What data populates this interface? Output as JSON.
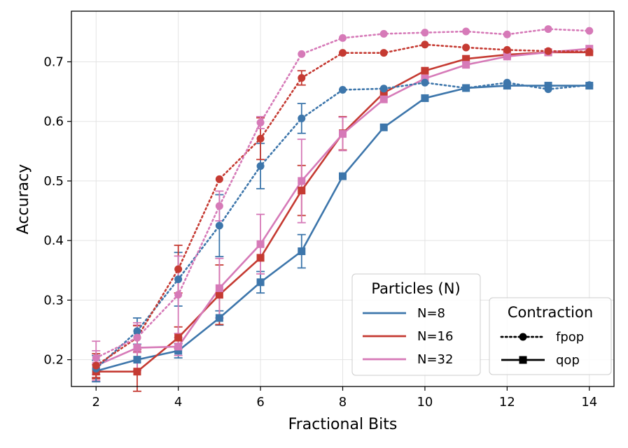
{
  "chart_data": {
    "type": "line",
    "xlabel": "Fractional Bits",
    "ylabel": "Accuracy",
    "xlim": [
      1.4,
      14.6
    ],
    "ylim": [
      0.155,
      0.785
    ],
    "xticks": [
      2,
      4,
      6,
      8,
      10,
      12,
      14
    ],
    "xtick_labels": [
      "2",
      "4",
      "6",
      "8",
      "10",
      "12",
      "14"
    ],
    "yticks": [
      0.2,
      0.3,
      0.4,
      0.5,
      0.6,
      0.7
    ],
    "ytick_labels": [
      "0.2",
      "0.3",
      "0.4",
      "0.5",
      "0.6",
      "0.7"
    ],
    "grid": true,
    "x": [
      2,
      3,
      4,
      5,
      6,
      7,
      8,
      9,
      10,
      11,
      12,
      13,
      14
    ],
    "particles_legend": {
      "title": "Particles (N)",
      "placement": "lower-center",
      "entries": [
        {
          "label": "N=8",
          "color": "#3d76ab"
        },
        {
          "label": "N=16",
          "color": "#c53a32"
        },
        {
          "label": "N=32",
          "color": "#d67ab8"
        }
      ]
    },
    "contraction_legend": {
      "title": "Contraction",
      "placement": "lower-right",
      "entries": [
        {
          "label": "fpop",
          "style": "dotted",
          "marker": "circle"
        },
        {
          "label": "qop",
          "style": "solid",
          "marker": "square"
        }
      ]
    },
    "series": [
      {
        "name": "N=8 qop",
        "color": "#3d76ab",
        "style": "solid",
        "marker": "square",
        "values": [
          0.181,
          0.2,
          0.215,
          0.27,
          0.33,
          0.382,
          0.508,
          0.59,
          0.639,
          0.656,
          0.66,
          0.66,
          0.66
        ],
        "errors": [
          0.018,
          0.0,
          0.012,
          0.012,
          0.018,
          0.028,
          0.0,
          0.0,
          0.0,
          0.0,
          0.0,
          0.0,
          0.0
        ]
      },
      {
        "name": "N=16 qop",
        "color": "#c53a32",
        "style": "solid",
        "marker": "square",
        "values": [
          0.18,
          0.18,
          0.237,
          0.309,
          0.371,
          0.484,
          0.58,
          0.648,
          0.685,
          0.705,
          0.712,
          0.716,
          0.716
        ],
        "errors": [
          0.012,
          0.033,
          0.018,
          0.05,
          0.0,
          0.042,
          0.028,
          0.0,
          0.0,
          0.0,
          0.0,
          0.0,
          0.0
        ]
      },
      {
        "name": "N=32 qop",
        "color": "#d67ab8",
        "style": "solid",
        "marker": "square",
        "values": [
          0.19,
          0.22,
          0.222,
          0.32,
          0.394,
          0.5,
          0.579,
          0.637,
          0.672,
          0.695,
          0.709,
          0.716,
          0.722
        ],
        "errors": [
          0.025,
          0.038,
          0.015,
          0.05,
          0.05,
          0.07,
          0.028,
          0.0,
          0.0,
          0.0,
          0.0,
          0.0,
          0.0
        ]
      },
      {
        "name": "N=8 fpop",
        "color": "#3d76ab",
        "style": "dotted",
        "marker": "circle",
        "values": [
          0.185,
          0.248,
          0.335,
          0.425,
          0.525,
          0.605,
          0.653,
          0.655,
          0.665,
          0.656,
          0.665,
          0.654,
          0.661
        ],
        "errors": [
          0.022,
          0.022,
          0.045,
          0.052,
          0.038,
          0.025,
          0.0,
          0.0,
          0.0,
          0.0,
          0.0,
          0.0,
          0.0
        ]
      },
      {
        "name": "N=16 fpop",
        "color": "#c53a32",
        "style": "dotted",
        "marker": "circle",
        "values": [
          0.19,
          0.237,
          0.352,
          0.503,
          0.571,
          0.673,
          0.715,
          0.715,
          0.729,
          0.724,
          0.72,
          0.718,
          0.717
        ],
        "errors": [
          0.02,
          0.02,
          0.04,
          0.0,
          0.035,
          0.012,
          0.0,
          0.0,
          0.0,
          0.0,
          0.0,
          0.0,
          0.0
        ]
      },
      {
        "name": "N=32 fpop",
        "color": "#d67ab8",
        "style": "dotted",
        "marker": "circle",
        "values": [
          0.203,
          0.237,
          0.309,
          0.458,
          0.598,
          0.713,
          0.74,
          0.747,
          0.749,
          0.751,
          0.746,
          0.755,
          0.752
        ],
        "errors": [
          0.028,
          0.025,
          0.065,
          0.025,
          0.01,
          0.0,
          0.0,
          0.0,
          0.0,
          0.0,
          0.0,
          0.0,
          0.0
        ]
      }
    ]
  }
}
